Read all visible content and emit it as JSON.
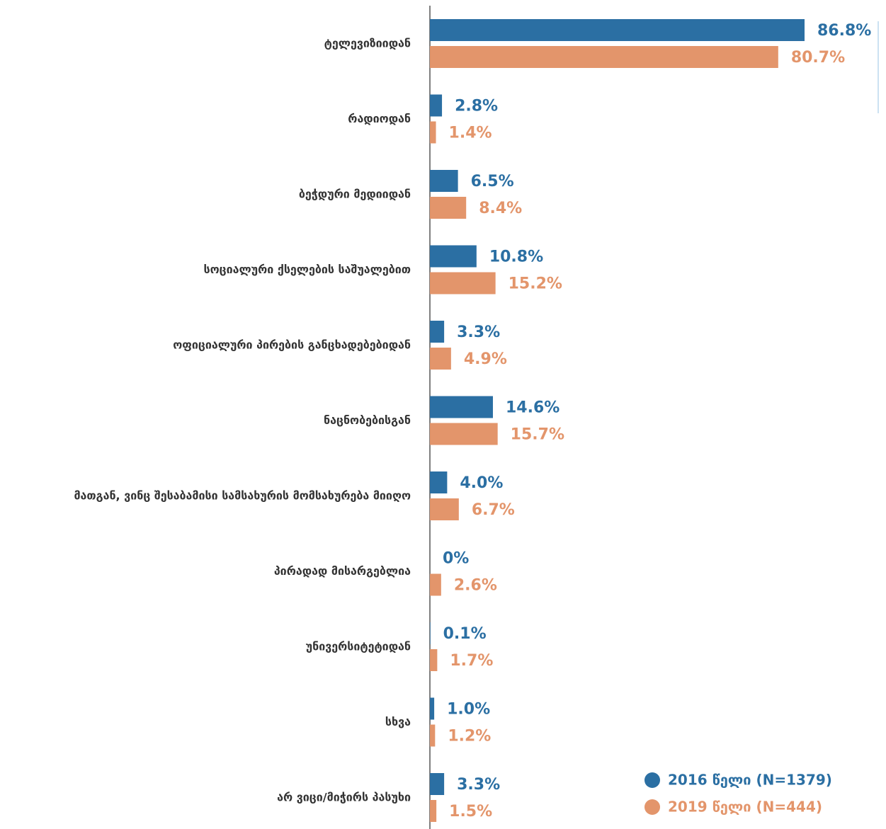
{
  "chart_data": {
    "type": "barh",
    "categories": [
      "ტელევიზიიდან",
      "რადიოდან",
      "ბეჭდური მედიიდან",
      "სოციალური ქსელების საშუალებით",
      "ოფიციალური პირების განცხადებებიდან",
      "ნაცნობებისგან",
      "მათგან, ვინც შესაბამისი სამსახურის მომსახურება მიიღო",
      "პირადად მისარგებლია",
      "უნივერსიტეტიდან",
      "სხვა",
      "არ ვიცი/მიჭირს პასუხი"
    ],
    "series": [
      {
        "name": "2016 წელი (N=1379)",
        "color": "#2b6fa3",
        "values": [
          86.8,
          2.8,
          6.5,
          10.8,
          3.3,
          14.6,
          4.0,
          0,
          0.1,
          1.0,
          3.3
        ],
        "value_labels": [
          "86.8%",
          "2.8%",
          "6.5%",
          "10.8%",
          "3.3%",
          "14.6%",
          "4.0%",
          "0%",
          "0.1%",
          "1.0%",
          "3.3%"
        ]
      },
      {
        "name": "2019 წელი (N=444)",
        "color": "#e3956b",
        "values": [
          80.7,
          1.4,
          8.4,
          15.2,
          4.9,
          15.7,
          6.7,
          2.6,
          1.7,
          1.2,
          1.5
        ],
        "value_labels": [
          "80.7%",
          "1.4%",
          "8.4%",
          "15.2%",
          "4.9%",
          "15.7%",
          "6.7%",
          "2.6%",
          "1.7%",
          "1.2%",
          "1.5%"
        ]
      }
    ]
  }
}
